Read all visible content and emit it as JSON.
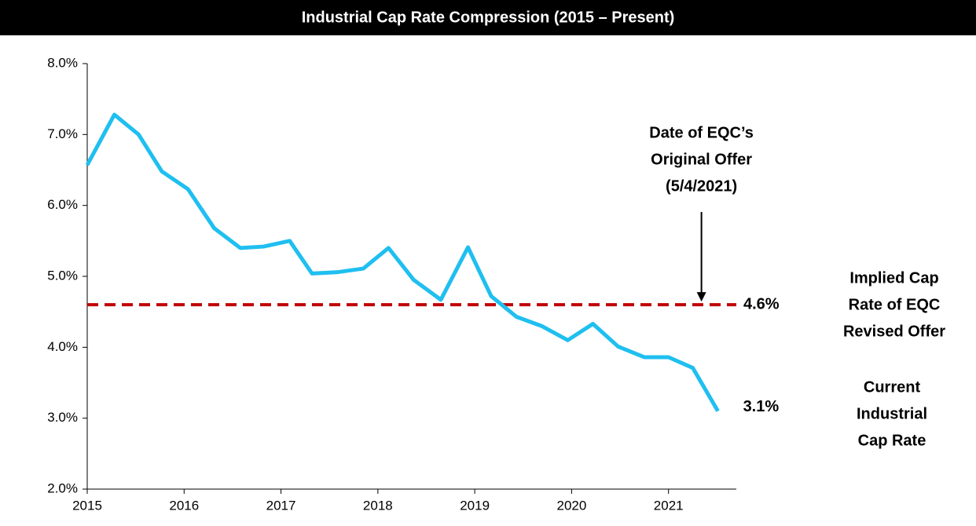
{
  "chart_data": {
    "type": "line",
    "title": "Industrial Cap Rate Compression (2015 – Present)",
    "x": [
      2015.0,
      2015.28,
      2015.53,
      2015.77,
      2016.04,
      2016.31,
      2016.58,
      2016.82,
      2017.09,
      2017.32,
      2017.59,
      2017.85,
      2018.11,
      2018.37,
      2018.65,
      2018.93,
      2019.17,
      2019.43,
      2019.69,
      2019.96,
      2020.22,
      2020.48,
      2020.75,
      2021.0,
      2021.25,
      2021.51
    ],
    "series": [
      {
        "name": "Current Industrial Cap Rate",
        "color": "#1fbff0",
        "values": [
          6.57,
          7.28,
          7.0,
          6.48,
          6.23,
          5.68,
          5.4,
          5.42,
          5.5,
          5.04,
          5.06,
          5.11,
          5.4,
          4.95,
          4.67,
          5.41,
          4.72,
          4.43,
          4.3,
          4.1,
          4.33,
          4.01,
          3.86,
          3.86,
          3.71,
          3.1
        ],
        "value_labels": [
          null,
          null,
          null,
          null,
          null,
          null,
          null,
          null,
          null,
          null,
          null,
          null,
          null,
          null,
          null,
          null,
          null,
          null,
          null,
          null,
          null,
          null,
          null,
          null,
          null,
          "3.1%"
        ],
        "label_lines": [
          "Current",
          "Industrial",
          "Cap Rate"
        ]
      }
    ],
    "reference_line": {
      "value": 4.6,
      "label": "4.6%",
      "color": "#c00000",
      "label_lines": [
        "Implied Cap",
        "Rate of EQC",
        "Revised Offer"
      ]
    },
    "annotation": {
      "x": 2021.34,
      "lines": [
        "Date of EQC’s",
        "Original Offer",
        "(5/4/2021)"
      ]
    },
    "xlim": [
      2015,
      2021.7
    ],
    "xticks": [
      2015,
      2016,
      2017,
      2018,
      2019,
      2020,
      2021
    ],
    "ylim": [
      2,
      8
    ],
    "yticks": [
      {
        "value": 2,
        "label": "2.0%"
      },
      {
        "value": 3,
        "label": "3.0%"
      },
      {
        "value": 4,
        "label": "4.0%"
      },
      {
        "value": 5,
        "label": "5.0%"
      },
      {
        "value": 6,
        "label": "6.0%"
      },
      {
        "value": 7,
        "label": "7.0%"
      },
      {
        "value": 8,
        "label": "8.0%"
      }
    ]
  }
}
